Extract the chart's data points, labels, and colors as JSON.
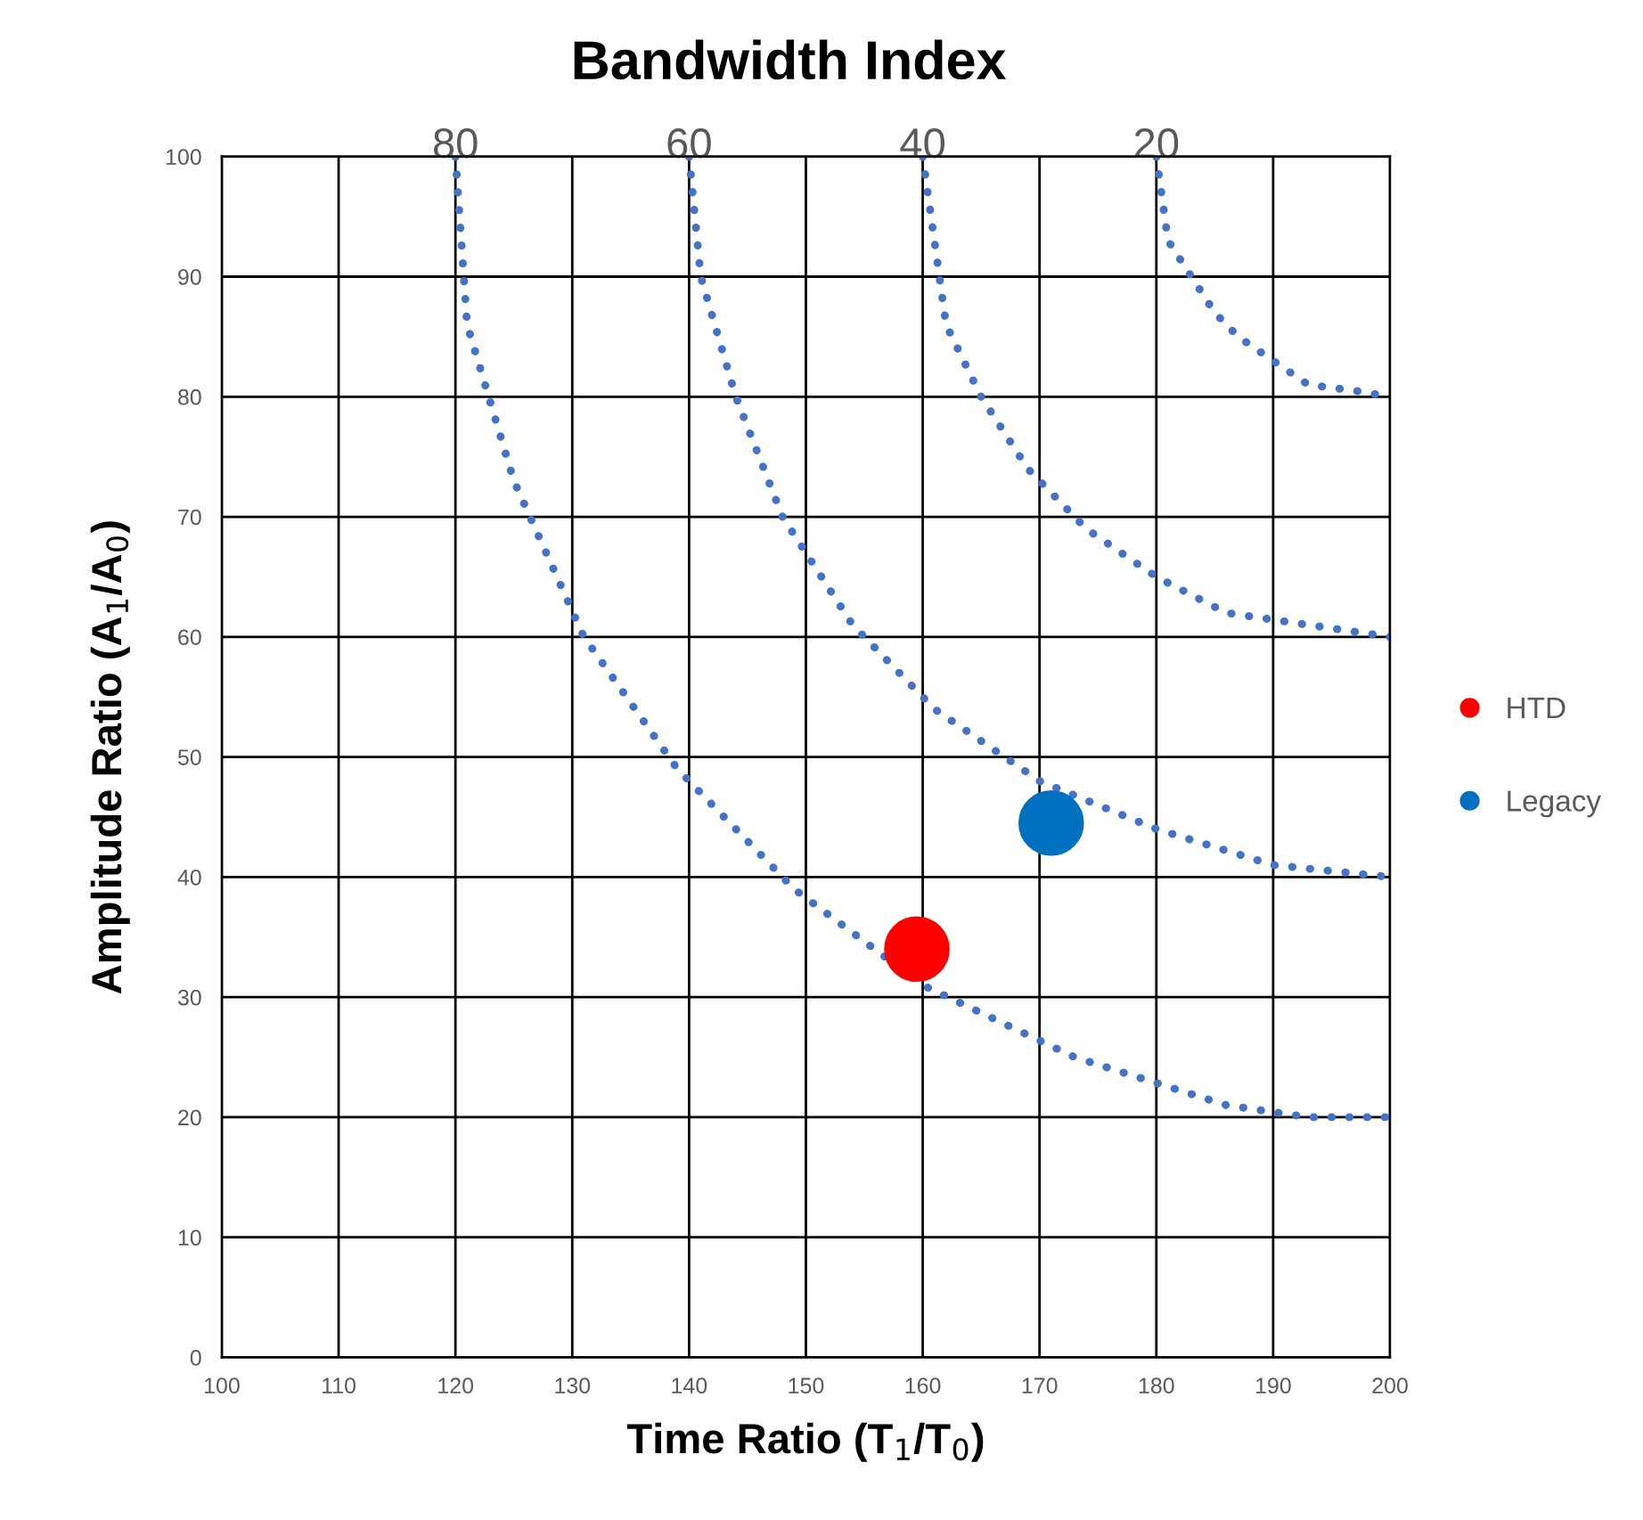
{
  "chart_data": {
    "type": "scatter",
    "title": "Bandwidth Index",
    "xlabel": "Time Ratio (T$_{1}$/T$_{0}$)",
    "ylabel": "Amplitude Ratio (A$_{1}$/A$_{0}$)",
    "xlim": [
      100,
      200
    ],
    "xticks": [
      100,
      110,
      120,
      130,
      140,
      150,
      160,
      170,
      180,
      190,
      200
    ],
    "ylim": [
      0,
      100
    ],
    "yticks": [
      0,
      10,
      20,
      30,
      40,
      50,
      60,
      70,
      80,
      90,
      100
    ],
    "x2lim": [
      100,
      0
    ],
    "x2ticks": [
      80,
      60,
      40,
      20
    ],
    "grid": true,
    "legend": "right",
    "marker": "circle",
    "series": [
      {
        "type": "line",
        "line_style": "dotted",
        "marker": "none",
        "color": "#4472c4",
        "x": [
          120,
          121,
          125,
          131,
          139,
          149,
          160,
          173,
          186,
          193,
          200
        ],
        "values": [
          100,
          86,
          73,
          60,
          49,
          39,
          31,
          25,
          21,
          20,
          20
        ]
      },
      {
        "type": "line",
        "line_style": "dotted",
        "marker": "none",
        "color": "#4472c4",
        "x": [
          140,
          141,
          144,
          148,
          154,
          161,
          170,
          180,
          190,
          200
        ],
        "values": [
          100,
          90,
          80,
          70,
          61,
          54,
          48,
          44,
          41,
          40
        ]
      },
      {
        "type": "line",
        "line_style": "dotted",
        "marker": "none",
        "color": "#4472c4",
        "x": [
          160,
          161,
          162,
          165,
          169,
          174,
          180,
          186,
          193,
          200
        ],
        "values": [
          100,
          93,
          86,
          80,
          74,
          69,
          65,
          62,
          61,
          60
        ]
      },
      {
        "type": "line",
        "line_style": "dotted",
        "marker": "none",
        "color": "#4472c4",
        "x": [
          180,
          180.5,
          181,
          183,
          185,
          187,
          190,
          193,
          197,
          200
        ],
        "values": [
          100,
          96.5,
          93,
          90,
          87,
          85,
          83,
          81,
          80.5,
          80
        ]
      },
      {
        "name": "HTD",
        "color": "#ff0000",
        "x": [
          159.5
        ],
        "values": [
          34
        ]
      },
      {
        "name": "Legacy",
        "color": "#0070c0",
        "x": [
          171
        ],
        "values": [
          44.5
        ]
      }
    ]
  }
}
